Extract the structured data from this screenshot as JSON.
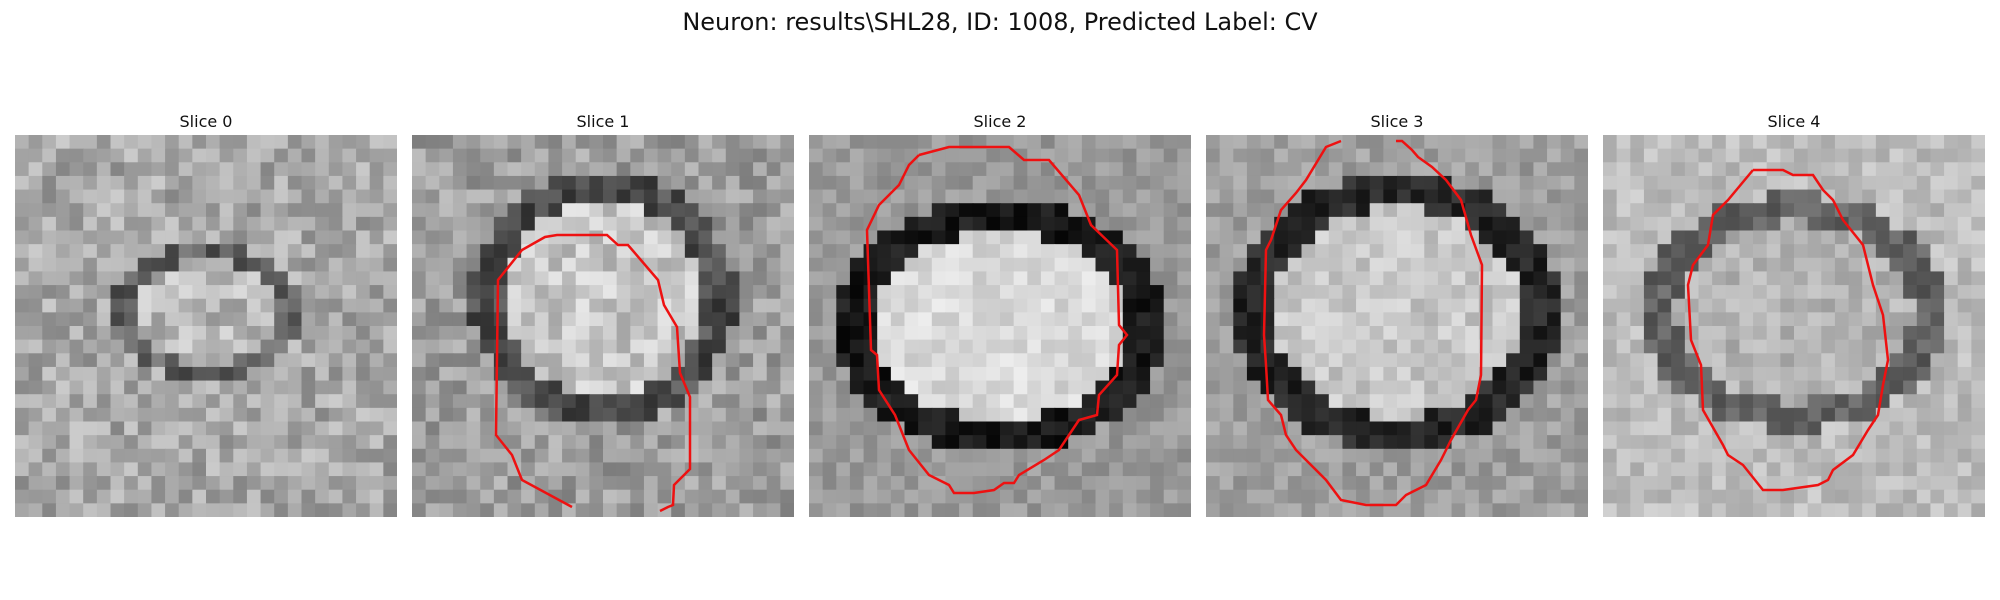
{
  "figure": {
    "title": "Neuron: results\\SHL28, ID: 1008, Predicted Label: CV"
  },
  "panels": [
    {
      "title": "Slice 0",
      "has_contour": false
    },
    {
      "title": "Slice 1",
      "has_contour": true
    },
    {
      "title": "Slice 2",
      "has_contour": true
    },
    {
      "title": "Slice 3",
      "has_contour": true
    },
    {
      "title": "Slice 4",
      "has_contour": true
    }
  ],
  "colors": {
    "contour": "#ee1111",
    "background": "#ffffff"
  }
}
